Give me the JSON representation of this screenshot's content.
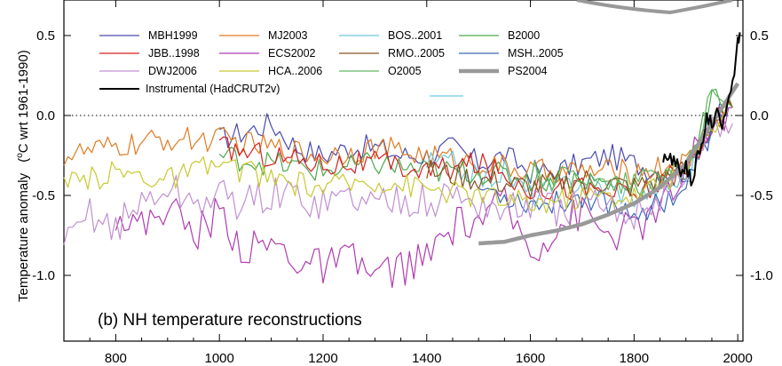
{
  "chart_data": {
    "type": "line",
    "title": "(b) NH temperature reconstructions",
    "ylabel_main": "Temperature anomaly",
    "ylabel_units_pre": "(",
    "ylabel_units_sup": "o",
    "ylabel_units_post": "C wrt 1961-1990)",
    "xlim": [
      700,
      2010
    ],
    "ylim": [
      -1.4,
      0.7
    ],
    "x_ticks": [
      800,
      1000,
      1200,
      1400,
      1600,
      1800,
      2000
    ],
    "x_tick_labels": [
      "800",
      "1000",
      "1200",
      "1400",
      "1600",
      "1800",
      "2000"
    ],
    "y_ticks": [
      0.5,
      0.0,
      -0.5,
      -1.0
    ],
    "y_tick_labels_left": [
      "0.5",
      "0.0",
      "-0.5",
      "-1.0"
    ],
    "y_tick_labels_right": [
      "0.5",
      "0.0",
      "-0.5",
      "-1.0"
    ],
    "zero_line": "dotted",
    "legend_placement": "top",
    "series": [
      {
        "name": "MBH1999",
        "color": "#4a4ab0",
        "start": 1000,
        "end": 1980,
        "values": [
          [
            1000,
            -0.15
          ],
          [
            1050,
            -0.1
          ],
          [
            1100,
            -0.05
          ],
          [
            1150,
            -0.2
          ],
          [
            1200,
            -0.25
          ],
          [
            1250,
            -0.2
          ],
          [
            1300,
            -0.2
          ],
          [
            1350,
            -0.25
          ],
          [
            1400,
            -0.25
          ],
          [
            1450,
            -0.2
          ],
          [
            1500,
            -0.3
          ],
          [
            1550,
            -0.25
          ],
          [
            1600,
            -0.35
          ],
          [
            1650,
            -0.35
          ],
          [
            1700,
            -0.3
          ],
          [
            1750,
            -0.25
          ],
          [
            1800,
            -0.3
          ],
          [
            1850,
            -0.35
          ],
          [
            1900,
            -0.35
          ],
          [
            1950,
            -0.05
          ],
          [
            1980,
            0.05
          ]
        ]
      },
      {
        "name": "MJ2003",
        "color": "#e07a20",
        "start": 700,
        "end": 1980,
        "values": [
          [
            700,
            -0.25
          ],
          [
            800,
            -0.2
          ],
          [
            900,
            -0.15
          ],
          [
            1000,
            -0.15
          ],
          [
            1100,
            -0.2
          ],
          [
            1200,
            -0.25
          ],
          [
            1300,
            -0.2
          ],
          [
            1400,
            -0.25
          ],
          [
            1500,
            -0.3
          ],
          [
            1600,
            -0.35
          ],
          [
            1700,
            -0.35
          ],
          [
            1800,
            -0.35
          ],
          [
            1900,
            -0.3
          ],
          [
            1950,
            -0.05
          ],
          [
            1980,
            0.0
          ]
        ]
      },
      {
        "name": "BOS..2001",
        "color": "#6ec8d8",
        "start": 1400,
        "end": 1960,
        "values": [
          [
            1400,
            -0.3
          ],
          [
            1450,
            -0.3
          ],
          [
            1500,
            -0.4
          ],
          [
            1550,
            -0.35
          ],
          [
            1600,
            -0.5
          ],
          [
            1650,
            -0.45
          ],
          [
            1700,
            -0.4
          ],
          [
            1750,
            -0.45
          ],
          [
            1800,
            -0.5
          ],
          [
            1850,
            -0.45
          ],
          [
            1900,
            -0.4
          ],
          [
            1940,
            -0.1
          ],
          [
            1960,
            -0.05
          ]
        ]
      },
      {
        "name": "B2000",
        "color": "#4caa4c",
        "start": 1000,
        "end": 1990,
        "values": [
          [
            1000,
            -0.25
          ],
          [
            1100,
            -0.3
          ],
          [
            1200,
            -0.35
          ],
          [
            1300,
            -0.3
          ],
          [
            1400,
            -0.35
          ],
          [
            1500,
            -0.35
          ],
          [
            1600,
            -0.4
          ],
          [
            1700,
            -0.4
          ],
          [
            1800,
            -0.45
          ],
          [
            1900,
            -0.35
          ],
          [
            1950,
            0.1
          ],
          [
            1990,
            0.05
          ]
        ]
      },
      {
        "name": "JBB..1998",
        "color": "#d42020",
        "start": 1000,
        "end": 1990,
        "values": [
          [
            1000,
            -0.2
          ],
          [
            1100,
            -0.25
          ],
          [
            1200,
            -0.3
          ],
          [
            1300,
            -0.3
          ],
          [
            1400,
            -0.35
          ],
          [
            1500,
            -0.3
          ],
          [
            1600,
            -0.45
          ],
          [
            1700,
            -0.45
          ],
          [
            1800,
            -0.5
          ],
          [
            1900,
            -0.35
          ],
          [
            1950,
            -0.05
          ],
          [
            1990,
            0.05
          ]
        ]
      },
      {
        "name": "ECS2002",
        "color": "#b03cb0",
        "start": 800,
        "end": 1990,
        "values": [
          [
            800,
            -0.6
          ],
          [
            850,
            -0.7
          ],
          [
            900,
            -0.55
          ],
          [
            950,
            -0.75
          ],
          [
            1000,
            -0.6
          ],
          [
            1050,
            -0.85
          ],
          [
            1100,
            -0.8
          ],
          [
            1150,
            -0.9
          ],
          [
            1200,
            -0.95
          ],
          [
            1250,
            -0.9
          ],
          [
            1300,
            -1.0
          ],
          [
            1350,
            -0.95
          ],
          [
            1400,
            -0.9
          ],
          [
            1450,
            -0.7
          ],
          [
            1500,
            -0.65
          ],
          [
            1550,
            -0.55
          ],
          [
            1600,
            -0.85
          ],
          [
            1650,
            -0.7
          ],
          [
            1700,
            -0.6
          ],
          [
            1750,
            -0.75
          ],
          [
            1800,
            -0.7
          ],
          [
            1850,
            -0.6
          ],
          [
            1900,
            -0.35
          ],
          [
            1950,
            -0.05
          ],
          [
            1990,
            0.05
          ]
        ]
      },
      {
        "name": "RMO..2005",
        "color": "#8a5020",
        "start": 1400,
        "end": 1990,
        "values": [
          [
            1400,
            -0.35
          ],
          [
            1500,
            -0.4
          ],
          [
            1600,
            -0.45
          ],
          [
            1700,
            -0.4
          ],
          [
            1800,
            -0.45
          ],
          [
            1900,
            -0.35
          ],
          [
            1950,
            -0.05
          ],
          [
            1990,
            0.05
          ]
        ]
      },
      {
        "name": "MSH..2005",
        "color": "#3a6ab8",
        "start": 1500,
        "end": 1980,
        "values": [
          [
            1500,
            -0.45
          ],
          [
            1550,
            -0.5
          ],
          [
            1600,
            -0.55
          ],
          [
            1650,
            -0.55
          ],
          [
            1700,
            -0.5
          ],
          [
            1750,
            -0.55
          ],
          [
            1800,
            -0.6
          ],
          [
            1850,
            -0.55
          ],
          [
            1900,
            -0.45
          ],
          [
            1950,
            -0.1
          ],
          [
            1980,
            0.0
          ]
        ]
      },
      {
        "name": "DWJ2006",
        "color": "#c090d0",
        "start": 700,
        "end": 1990,
        "values": [
          [
            700,
            -0.85
          ],
          [
            750,
            -0.6
          ],
          [
            800,
            -0.7
          ],
          [
            850,
            -0.55
          ],
          [
            900,
            -0.45
          ],
          [
            950,
            -0.55
          ],
          [
            1000,
            -0.5
          ],
          [
            1050,
            -0.55
          ],
          [
            1100,
            -0.5
          ],
          [
            1150,
            -0.5
          ],
          [
            1200,
            -0.55
          ],
          [
            1250,
            -0.5
          ],
          [
            1300,
            -0.55
          ],
          [
            1350,
            -0.5
          ],
          [
            1400,
            -0.55
          ],
          [
            1450,
            -0.5
          ],
          [
            1500,
            -0.55
          ],
          [
            1550,
            -0.6
          ],
          [
            1600,
            -0.55
          ],
          [
            1650,
            -0.6
          ],
          [
            1700,
            -0.55
          ],
          [
            1750,
            -0.6
          ],
          [
            1800,
            -0.6
          ],
          [
            1850,
            -0.5
          ],
          [
            1900,
            -0.35
          ],
          [
            1950,
            -0.1
          ],
          [
            1990,
            -0.05
          ]
        ]
      },
      {
        "name": "HCA..2006",
        "color": "#c8c830",
        "start": 700,
        "end": 1980,
        "values": [
          [
            700,
            -0.45
          ],
          [
            800,
            -0.35
          ],
          [
            900,
            -0.4
          ],
          [
            1000,
            -0.3
          ],
          [
            1100,
            -0.4
          ],
          [
            1200,
            -0.45
          ],
          [
            1300,
            -0.4
          ],
          [
            1400,
            -0.45
          ],
          [
            1500,
            -0.5
          ],
          [
            1600,
            -0.55
          ],
          [
            1700,
            -0.5
          ],
          [
            1800,
            -0.5
          ],
          [
            1900,
            -0.35
          ],
          [
            1950,
            -0.05
          ],
          [
            1980,
            0.05
          ]
        ]
      },
      {
        "name": "O2005",
        "color": "#60b860",
        "start": 1600,
        "end": 1990,
        "values": [
          [
            1600,
            -0.35
          ],
          [
            1650,
            -0.4
          ],
          [
            1700,
            -0.35
          ],
          [
            1750,
            -0.45
          ],
          [
            1800,
            -0.4
          ],
          [
            1850,
            -0.35
          ],
          [
            1900,
            -0.3
          ],
          [
            1950,
            0.1
          ],
          [
            1990,
            0.05
          ]
        ]
      },
      {
        "name": "PS2004",
        "color": "#999999",
        "start": 1500,
        "end": 2000,
        "values": [
          [
            1500,
            -0.8
          ],
          [
            1550,
            -0.79
          ],
          [
            1600,
            -0.75
          ],
          [
            1650,
            -0.72
          ],
          [
            1700,
            -0.68
          ],
          [
            1750,
            -0.62
          ],
          [
            1800,
            -0.55
          ],
          [
            1850,
            -0.45
          ],
          [
            1900,
            -0.3
          ],
          [
            1950,
            -0.05
          ],
          [
            2000,
            0.2
          ]
        ]
      },
      {
        "name": "Instrumental (HadCRUT2v)",
        "color": "#000000",
        "start": 1856,
        "end": 2004,
        "values": [
          [
            1856,
            -0.3
          ],
          [
            1870,
            -0.25
          ],
          [
            1880,
            -0.3
          ],
          [
            1890,
            -0.35
          ],
          [
            1900,
            -0.3
          ],
          [
            1910,
            -0.4
          ],
          [
            1920,
            -0.3
          ],
          [
            1930,
            -0.2
          ],
          [
            1940,
            0.0
          ],
          [
            1950,
            -0.05
          ],
          [
            1960,
            0.0
          ],
          [
            1970,
            -0.05
          ],
          [
            1980,
            0.1
          ],
          [
            1990,
            0.2
          ],
          [
            2000,
            0.45
          ],
          [
            2004,
            0.52
          ]
        ]
      }
    ]
  }
}
